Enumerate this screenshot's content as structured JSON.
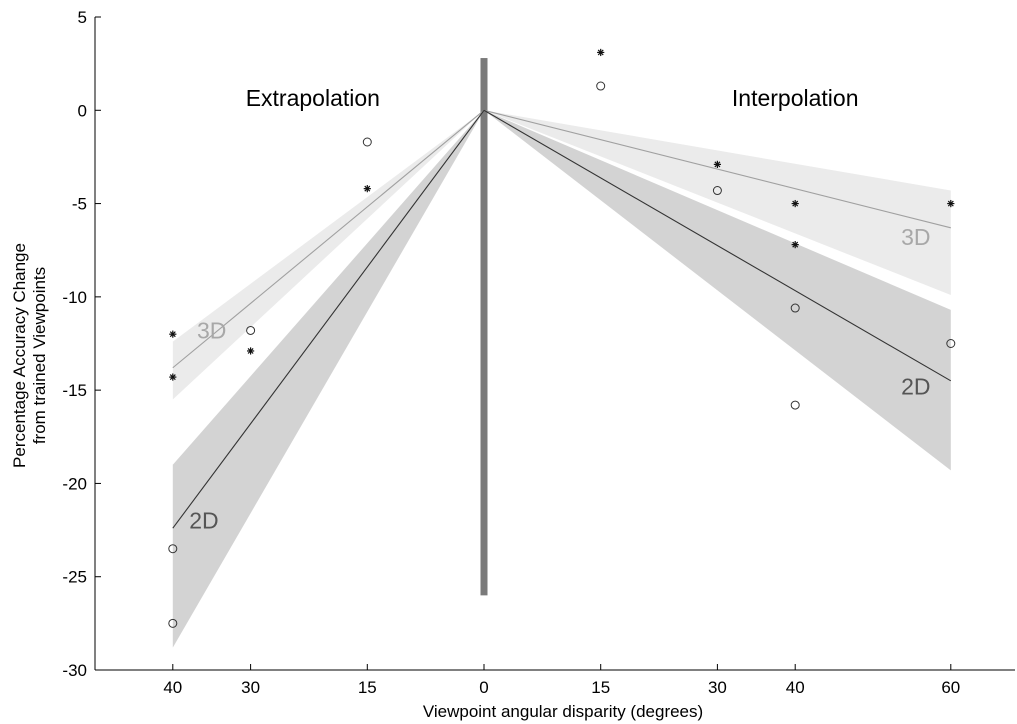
{
  "chart_data": {
    "type": "line",
    "xlabel": "Viewpoint angular disparity (degrees)",
    "ylabel_lines": [
      "Percentage Accuracy Change",
      "from trained Viewpoints"
    ],
    "ylim": [
      -30,
      5
    ],
    "yticks": [
      5,
      0,
      -5,
      -10,
      -15,
      -20,
      -25,
      -30
    ],
    "xlim": [
      -40,
      60
    ],
    "xticks": [
      {
        "x": -40,
        "label": "40"
      },
      {
        "x": -30,
        "label": "30"
      },
      {
        "x": -15,
        "label": "15"
      },
      {
        "x": 0,
        "label": "0"
      },
      {
        "x": 15,
        "label": "15"
      },
      {
        "x": 30,
        "label": "30"
      },
      {
        "x": 40,
        "label": "40"
      },
      {
        "x": 60,
        "label": "60"
      }
    ],
    "regions": [
      {
        "name": "Extrapolation",
        "x_center": -22
      },
      {
        "name": "Interpolation",
        "x_center": 40
      }
    ],
    "divider": {
      "x": 0,
      "y_top": 2.8,
      "y_bottom": -26,
      "color": "#7a7a7a"
    },
    "series": [
      {
        "name": "3D",
        "marker": "asterisk",
        "line_color": "#a0a0a0",
        "band_color": "#ebebeb",
        "label_color": "#a8a8a8",
        "fit_lines": [
          {
            "x": [
              -40,
              0
            ],
            "y": [
              -13.8,
              0
            ]
          },
          {
            "x": [
              0,
              60
            ],
            "y": [
              0,
              -6.3
            ]
          }
        ],
        "bands": [
          {
            "x": [
              -40,
              0
            ],
            "upper": [
              -12.4,
              0
            ],
            "lower": [
              -15.5,
              0
            ]
          },
          {
            "x": [
              0,
              60
            ],
            "upper": [
              0,
              -4.3
            ],
            "lower": [
              0,
              -9.9
            ]
          }
        ],
        "points": [
          {
            "x": -40,
            "y": -12.0
          },
          {
            "x": -40,
            "y": -14.3
          },
          {
            "x": -30,
            "y": -12.9
          },
          {
            "x": -15,
            "y": -4.2
          },
          {
            "x": 15,
            "y": 3.1
          },
          {
            "x": 30,
            "y": -2.9
          },
          {
            "x": 40,
            "y": -5.0
          },
          {
            "x": 40,
            "y": -7.2
          },
          {
            "x": 60,
            "y": -5.0
          }
        ],
        "label_positions": [
          {
            "x": -35,
            "y": -11.8
          },
          {
            "x": 55.5,
            "y": -6.8
          }
        ]
      },
      {
        "name": "2D",
        "marker": "circle",
        "line_color": "#333333",
        "band_color": "#d3d3d3",
        "label_color": "#555555",
        "fit_lines": [
          {
            "x": [
              -40,
              0
            ],
            "y": [
              -22.4,
              0
            ]
          },
          {
            "x": [
              0,
              60
            ],
            "y": [
              0,
              -14.5
            ]
          }
        ],
        "bands": [
          {
            "x": [
              -40,
              0
            ],
            "upper": [
              -19.0,
              0
            ],
            "lower": [
              -28.8,
              0
            ]
          },
          {
            "x": [
              0,
              60
            ],
            "upper": [
              0,
              -10.7
            ],
            "lower": [
              0,
              -19.3
            ]
          }
        ],
        "points": [
          {
            "x": -40,
            "y": -23.5
          },
          {
            "x": -40,
            "y": -27.5
          },
          {
            "x": -30,
            "y": -11.8
          },
          {
            "x": -15,
            "y": -1.7
          },
          {
            "x": 15,
            "y": 1.3
          },
          {
            "x": 30,
            "y": -4.3
          },
          {
            "x": 40,
            "y": -10.6
          },
          {
            "x": 40,
            "y": -15.8
          },
          {
            "x": 60,
            "y": -12.5
          }
        ],
        "label_positions": [
          {
            "x": -36,
            "y": -22.0
          },
          {
            "x": 55.5,
            "y": -14.8
          }
        ]
      }
    ]
  }
}
